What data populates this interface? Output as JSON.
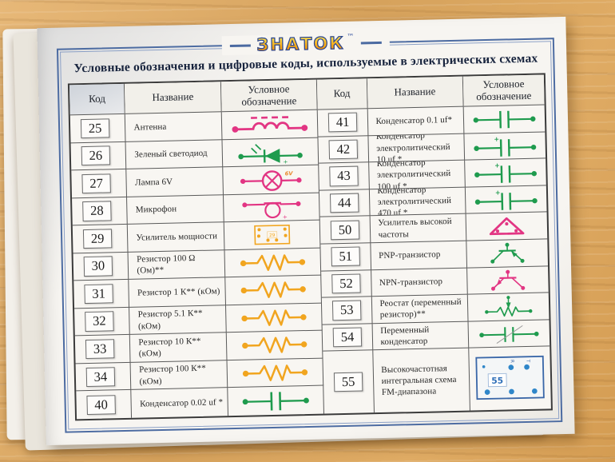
{
  "page": {
    "logo": "ЗНАТОК",
    "logo_tm": "™",
    "title": "Условные обозначения и цифровые коды, используемые в электрических схемах"
  },
  "table": {
    "headers": [
      "Код",
      "Название",
      "Условное обозначение"
    ],
    "left_rows": [
      {
        "code": "25",
        "name": "Антенна",
        "symbol": "antenna"
      },
      {
        "code": "26",
        "name": "Зеленый светодиод",
        "symbol": "green-led"
      },
      {
        "code": "27",
        "name": "Лампа 6V",
        "symbol": "lamp"
      },
      {
        "code": "28",
        "name": "Микрофон",
        "symbol": "microphone"
      },
      {
        "code": "29",
        "name": "Усилитель мощности",
        "symbol": "power-amplifier"
      },
      {
        "code": "30",
        "name": "Резистор 100 Ω (Ом)**",
        "symbol": "resistor"
      },
      {
        "code": "31",
        "name": "Резистор 1 К** (кОм)",
        "symbol": "resistor"
      },
      {
        "code": "32",
        "name": "Резистор 5.1 К** (кОм)",
        "symbol": "resistor"
      },
      {
        "code": "33",
        "name": "Резистор 10 К** (кОм)",
        "symbol": "resistor"
      },
      {
        "code": "34",
        "name": "Резистор 100 К** (кОм)",
        "symbol": "resistor"
      },
      {
        "code": "40",
        "name": "Конденсатор 0.02 uf *",
        "symbol": "capacitor"
      }
    ],
    "right_rows": [
      {
        "code": "41",
        "name": "Конденсатор 0.1 uf*",
        "symbol": "capacitor"
      },
      {
        "code": "42",
        "name": "Конденсатор электролитический 10 uf *",
        "symbol": "capacitor-polar"
      },
      {
        "code": "43",
        "name": "Конденсатор электролитический 100 uf *",
        "symbol": "capacitor-polar"
      },
      {
        "code": "44",
        "name": "Конденсатор электролитический 470 uf *",
        "symbol": "capacitor-polar"
      },
      {
        "code": "50",
        "name": "Усилитель высокой частоты",
        "symbol": "hf-amplifier"
      },
      {
        "code": "51",
        "name": "PNP-транзистор",
        "symbol": "pnp-transistor"
      },
      {
        "code": "52",
        "name": "NPN-транзистор",
        "symbol": "npn-transistor"
      },
      {
        "code": "53",
        "name": "Реостат (переменный резистор)**",
        "symbol": "rheostat"
      },
      {
        "code": "54",
        "name": "Переменный конденсатор",
        "symbol": "variable-capacitor"
      },
      {
        "code": "55",
        "name": "Высокочастотная интегральная схема FM-диапазона",
        "symbol": "ic-55"
      }
    ],
    "symbol_labels": {
      "lamp_voltage": "6V",
      "power_amp_code": "29",
      "ic_code": "55",
      "ic_pin_r": "R",
      "ic_pin_t": "T",
      "plus": "+"
    }
  },
  "colors": {
    "pink": "#e23583",
    "green": "#1f9b4e",
    "orange": "#f1a51f",
    "lamp_label": "#e8882b",
    "ic_blue": "#2f86c9",
    "ic_frame": "#3a67a8",
    "frame_blue": "#4d6ca2"
  }
}
